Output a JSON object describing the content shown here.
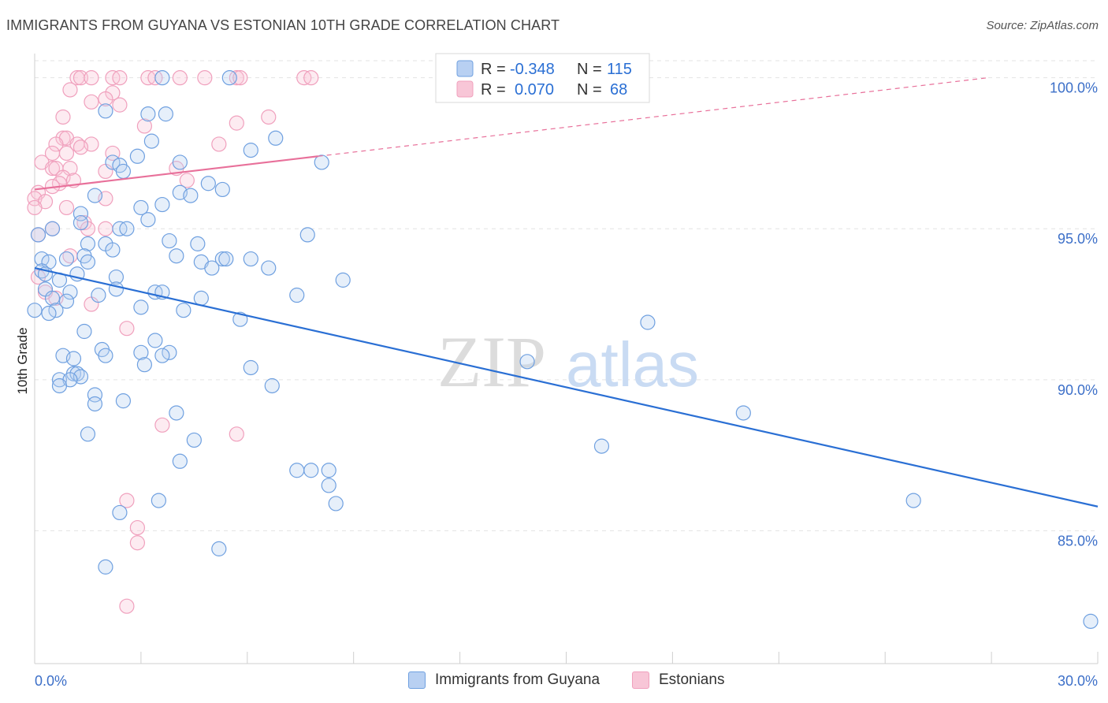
{
  "title": "IMMIGRANTS FROM GUYANA VS ESTONIAN 10TH GRADE CORRELATION CHART",
  "source": "Source: ZipAtlas.com",
  "watermark": {
    "zip": "ZIP",
    "atlas": "atlas"
  },
  "colors": {
    "blue": "#6fa0e0",
    "blue_line": "#2a6fd4",
    "pink": "#f0a0bd",
    "pink_line": "#e8709a",
    "tick_text": "#3c6fc8"
  },
  "legend_stats": [
    {
      "r_label": "R =",
      "r_value": "-0.348",
      "n_label": "N =",
      "n_value": "115"
    },
    {
      "r_label": "R =",
      "r_value": "0.070",
      "n_label": "N =",
      "n_value": "68"
    }
  ],
  "chart_data": {
    "type": "scatter",
    "title": "IMMIGRANTS FROM GUYANA VS ESTONIAN 10TH GRADE CORRELATION CHART",
    "xlabel": "",
    "ylabel": "10th Grade",
    "xlim": [
      0,
      30
    ],
    "ylim": [
      80.6,
      100.8
    ],
    "x_tick_labels": [
      "0.0%",
      "30.0%"
    ],
    "y_ticks": [
      85,
      90,
      95,
      100
    ],
    "y_tick_labels": [
      "85.0%",
      "90.0%",
      "95.0%",
      "100.0%"
    ],
    "legend": [
      "Immigrants from Guyana",
      "Estonians"
    ],
    "series": [
      {
        "name": "Immigrants from Guyana",
        "color": "#6fa0e0",
        "trend": {
          "x": [
            0,
            30
          ],
          "y": [
            93.7,
            85.8
          ]
        },
        "points": [
          [
            3.6,
            100
          ],
          [
            5.5,
            100
          ],
          [
            2.0,
            98.9
          ],
          [
            3.2,
            98.8
          ],
          [
            3.7,
            98.8
          ],
          [
            6.8,
            98.0
          ],
          [
            3.3,
            97.9
          ],
          [
            6.1,
            97.6
          ],
          [
            2.9,
            97.4
          ],
          [
            2.2,
            97.2
          ],
          [
            2.4,
            97.1
          ],
          [
            8.1,
            97.2
          ],
          [
            4.1,
            97.2
          ],
          [
            2.5,
            96.9
          ],
          [
            4.9,
            96.5
          ],
          [
            5.3,
            96.3
          ],
          [
            4.1,
            96.2
          ],
          [
            4.4,
            96.1
          ],
          [
            1.7,
            96.1
          ],
          [
            3.6,
            95.8
          ],
          [
            3.0,
            95.7
          ],
          [
            3.2,
            95.3
          ],
          [
            1.3,
            95.5
          ],
          [
            1.3,
            95.2
          ],
          [
            2.4,
            95.0
          ],
          [
            2.6,
            95.0
          ],
          [
            0.5,
            95.0
          ],
          [
            0.1,
            94.8
          ],
          [
            7.7,
            94.8
          ],
          [
            3.8,
            94.6
          ],
          [
            4.6,
            94.5
          ],
          [
            2.0,
            94.5
          ],
          [
            1.5,
            94.5
          ],
          [
            2.2,
            94.3
          ],
          [
            4.0,
            94.1
          ],
          [
            1.4,
            94.1
          ],
          [
            0.2,
            94.0
          ],
          [
            0.9,
            94.0
          ],
          [
            4.7,
            93.9
          ],
          [
            5.3,
            94.0
          ],
          [
            5.4,
            94.0
          ],
          [
            6.1,
            94.0
          ],
          [
            0.4,
            93.9
          ],
          [
            1.5,
            93.9
          ],
          [
            5.0,
            93.7
          ],
          [
            6.6,
            93.7
          ],
          [
            0.2,
            93.6
          ],
          [
            0.3,
            93.5
          ],
          [
            1.2,
            93.5
          ],
          [
            2.3,
            93.4
          ],
          [
            0.7,
            93.3
          ],
          [
            8.7,
            93.3
          ],
          [
            0.3,
            93.0
          ],
          [
            2.3,
            93.0
          ],
          [
            1.0,
            92.9
          ],
          [
            3.4,
            92.9
          ],
          [
            3.6,
            92.9
          ],
          [
            1.8,
            92.8
          ],
          [
            7.4,
            92.8
          ],
          [
            4.7,
            92.7
          ],
          [
            0.5,
            92.7
          ],
          [
            0.9,
            92.6
          ],
          [
            3.0,
            92.4
          ],
          [
            4.2,
            92.3
          ],
          [
            0.6,
            92.3
          ],
          [
            0.4,
            92.2
          ],
          [
            0.0,
            92.3
          ],
          [
            5.8,
            92.0
          ],
          [
            17.3,
            91.9
          ],
          [
            1.4,
            91.6
          ],
          [
            3.4,
            91.3
          ],
          [
            1.9,
            91.0
          ],
          [
            3.0,
            90.9
          ],
          [
            3.8,
            90.9
          ],
          [
            2.0,
            90.8
          ],
          [
            0.8,
            90.8
          ],
          [
            1.1,
            90.7
          ],
          [
            3.6,
            90.8
          ],
          [
            13.9,
            90.6
          ],
          [
            3.1,
            90.5
          ],
          [
            6.1,
            90.4
          ],
          [
            1.1,
            90.2
          ],
          [
            1.2,
            90.2
          ],
          [
            1.3,
            90.1
          ],
          [
            0.7,
            90.0
          ],
          [
            1.0,
            90.0
          ],
          [
            6.7,
            89.8
          ],
          [
            0.7,
            89.8
          ],
          [
            1.7,
            89.5
          ],
          [
            2.5,
            89.3
          ],
          [
            20.0,
            88.9
          ],
          [
            4.0,
            88.9
          ],
          [
            1.7,
            89.2
          ],
          [
            1.5,
            88.2
          ],
          [
            4.5,
            88.0
          ],
          [
            16.0,
            87.8
          ],
          [
            4.1,
            87.3
          ],
          [
            7.4,
            87.0
          ],
          [
            7.8,
            87.0
          ],
          [
            8.3,
            87.0
          ],
          [
            8.3,
            86.5
          ],
          [
            3.5,
            86.0
          ],
          [
            8.5,
            85.9
          ],
          [
            24.8,
            86.0
          ],
          [
            2.4,
            85.6
          ],
          [
            5.2,
            84.4
          ],
          [
            2.0,
            83.8
          ],
          [
            29.8,
            82.0
          ]
        ]
      },
      {
        "name": "Estonians",
        "color": "#f0a0bd",
        "trend": {
          "x": [
            0,
            8.0
          ],
          "y": [
            96.3,
            97.4
          ]
        },
        "trend_extension": {
          "x": [
            8.0,
            26.9
          ],
          "y": [
            97.4,
            100.0
          ]
        },
        "points": [
          [
            1.2,
            100
          ],
          [
            1.3,
            100
          ],
          [
            1.6,
            100
          ],
          [
            2.2,
            100
          ],
          [
            2.4,
            100
          ],
          [
            3.2,
            100
          ],
          [
            3.4,
            100
          ],
          [
            4.1,
            100
          ],
          [
            4.8,
            100
          ],
          [
            5.7,
            100
          ],
          [
            5.8,
            100
          ],
          [
            7.6,
            100
          ],
          [
            7.8,
            100
          ],
          [
            1.0,
            99.6
          ],
          [
            2.2,
            99.5
          ],
          [
            2.0,
            99.3
          ],
          [
            1.6,
            99.2
          ],
          [
            2.4,
            99.1
          ],
          [
            0.8,
            98.7
          ],
          [
            6.6,
            98.7
          ],
          [
            5.7,
            98.5
          ],
          [
            3.1,
            98.4
          ],
          [
            0.8,
            98.0
          ],
          [
            0.9,
            98.0
          ],
          [
            1.2,
            97.8
          ],
          [
            1.6,
            97.8
          ],
          [
            0.6,
            97.8
          ],
          [
            5.2,
            97.8
          ],
          [
            2.2,
            97.5
          ],
          [
            0.9,
            97.5
          ],
          [
            0.5,
            97.5
          ],
          [
            1.3,
            97.7
          ],
          [
            0.2,
            97.2
          ],
          [
            0.5,
            97.0
          ],
          [
            0.6,
            97.0
          ],
          [
            1.0,
            97.0
          ],
          [
            0.8,
            96.7
          ],
          [
            1.1,
            96.6
          ],
          [
            2.0,
            96.9
          ],
          [
            4.0,
            97.0
          ],
          [
            0.7,
            96.5
          ],
          [
            0.5,
            96.4
          ],
          [
            0.1,
            96.2
          ],
          [
            0.0,
            96.0
          ],
          [
            2.0,
            96.0
          ],
          [
            4.3,
            96.6
          ],
          [
            0.3,
            95.9
          ],
          [
            0.0,
            95.7
          ],
          [
            0.9,
            95.7
          ],
          [
            1.4,
            95.2
          ],
          [
            1.5,
            95.0
          ],
          [
            2.0,
            95.0
          ],
          [
            0.5,
            95.0
          ],
          [
            0.1,
            94.8
          ],
          [
            1.0,
            94.1
          ],
          [
            0.1,
            93.4
          ],
          [
            0.3,
            92.9
          ],
          [
            0.6,
            92.7
          ],
          [
            1.6,
            92.5
          ],
          [
            2.6,
            91.7
          ],
          [
            3.6,
            88.5
          ],
          [
            5.7,
            88.2
          ],
          [
            2.6,
            86.0
          ],
          [
            2.9,
            85.1
          ],
          [
            2.9,
            84.6
          ],
          [
            2.6,
            82.5
          ]
        ]
      }
    ]
  }
}
